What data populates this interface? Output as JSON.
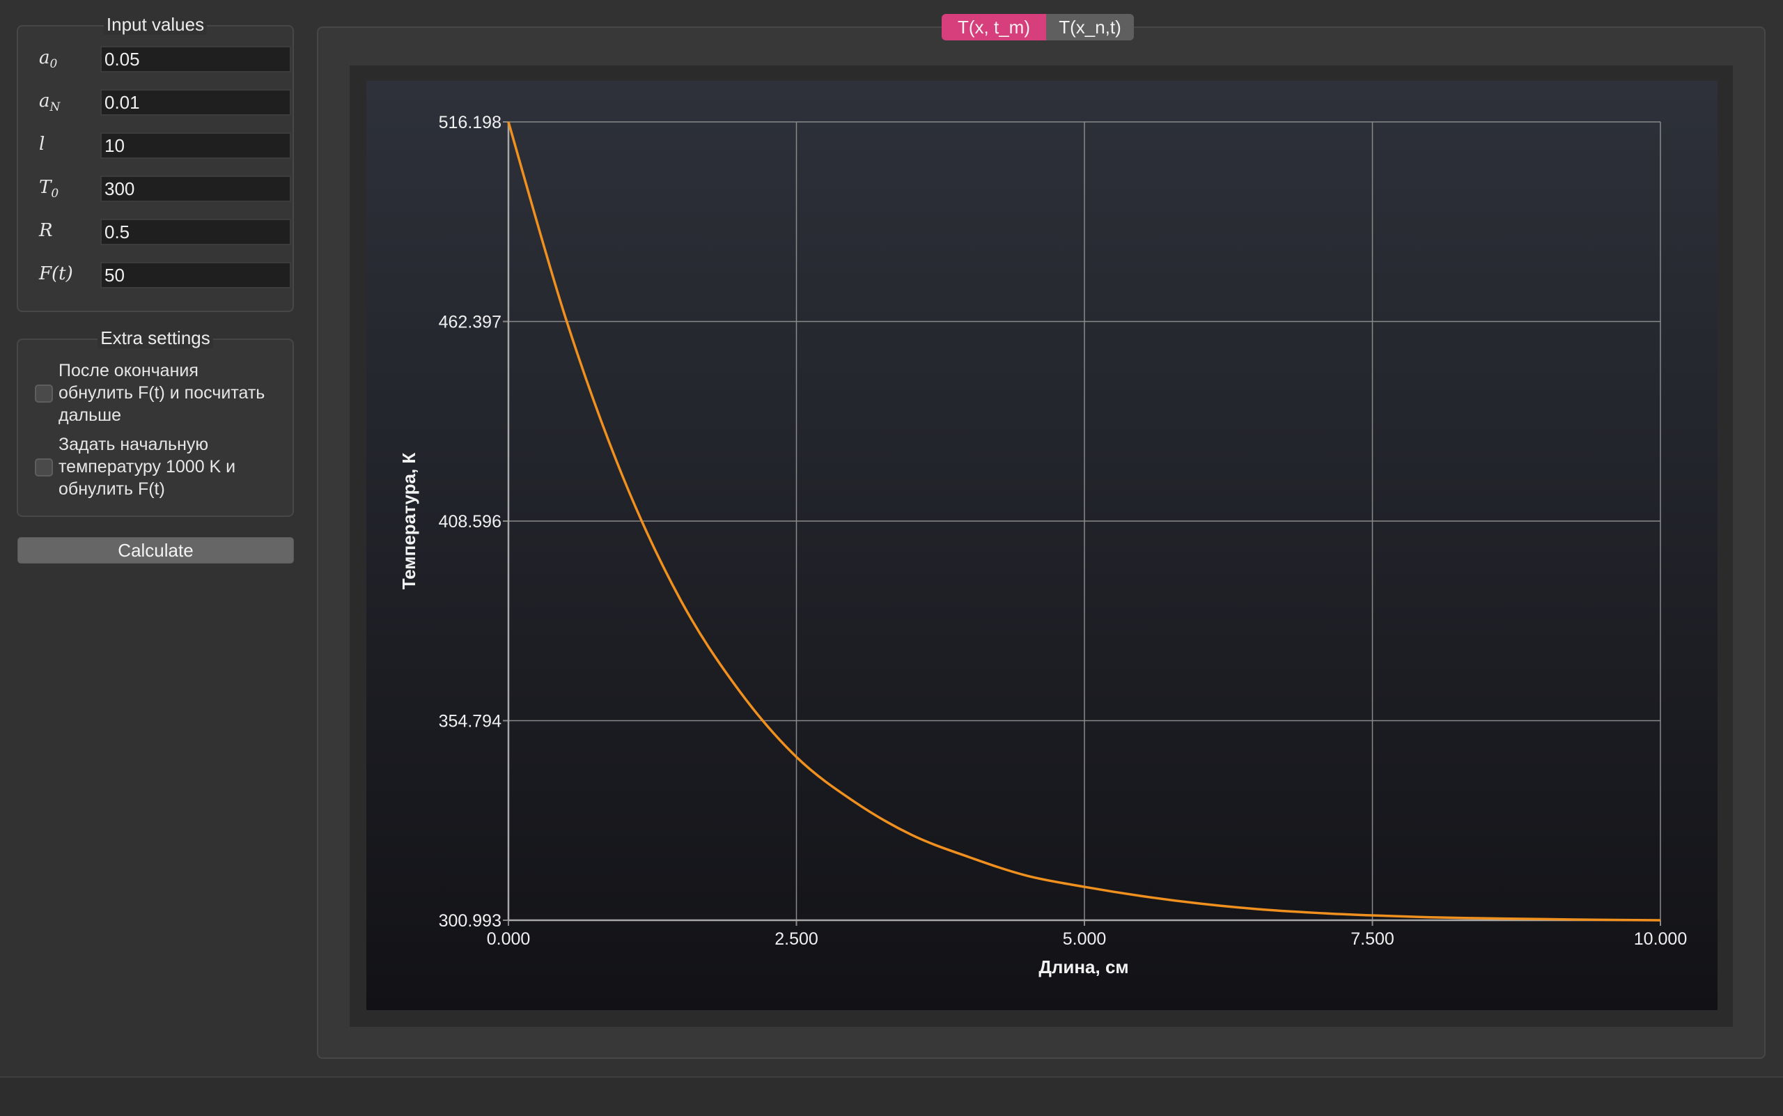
{
  "input_group": {
    "title": "Input values",
    "rows": [
      {
        "label": "a",
        "sub": "0",
        "value": "0.05"
      },
      {
        "label": "a",
        "sub": "N",
        "value": "0.01"
      },
      {
        "label": "l",
        "sub": "",
        "value": "10"
      },
      {
        "label": "T",
        "sub": "0",
        "value": "300"
      },
      {
        "label": "R",
        "sub": "",
        "value": "0.5"
      },
      {
        "label": "F(t)",
        "sub": "",
        "value": "50"
      }
    ]
  },
  "extra_group": {
    "title": "Extra settings",
    "checks": [
      {
        "label": "После окончания обнулить F(t) и посчитать дальше",
        "checked": false
      },
      {
        "label": "Задать начальную температуру 1000 K и обнулить F(t)",
        "checked": false
      }
    ]
  },
  "calculate_label": "Calculate",
  "tabs": [
    {
      "label": "T(x, t_m)",
      "active": true
    },
    {
      "label": "T(x_n,t)",
      "active": false
    }
  ],
  "colors": {
    "accent": "#d63f7c",
    "series": "#f0901e",
    "plot_bg_top": "#2e313a",
    "plot_bg_bottom": "#121216",
    "grid": "#8a8a8a"
  },
  "chart_data": {
    "type": "line",
    "title": "",
    "xlabel": "Длина, см",
    "ylabel": "Температура, К",
    "xlim": [
      0,
      10
    ],
    "ylim": [
      300.993,
      516.198
    ],
    "x_ticks": [
      "0.000",
      "2.500",
      "5.000",
      "7.500",
      "10.000"
    ],
    "y_ticks": [
      "516.198",
      "462.397",
      "408.596",
      "354.794",
      "300.993"
    ],
    "grid": true,
    "legend": "none",
    "series": [
      {
        "x": [
          0,
          0.5,
          1,
          1.5,
          2,
          2.5,
          3,
          3.5,
          4,
          4.5,
          5,
          5.5,
          6,
          6.5,
          7,
          7.5,
          8,
          8.5,
          9,
          9.5,
          10
        ],
        "y": [
          516.2,
          463,
          420,
          387,
          363,
          345,
          333,
          324,
          318,
          313,
          310,
          307.5,
          305.5,
          304,
          303,
          302.3,
          301.8,
          301.5,
          301.3,
          301.1,
          301.0
        ]
      }
    ]
  }
}
